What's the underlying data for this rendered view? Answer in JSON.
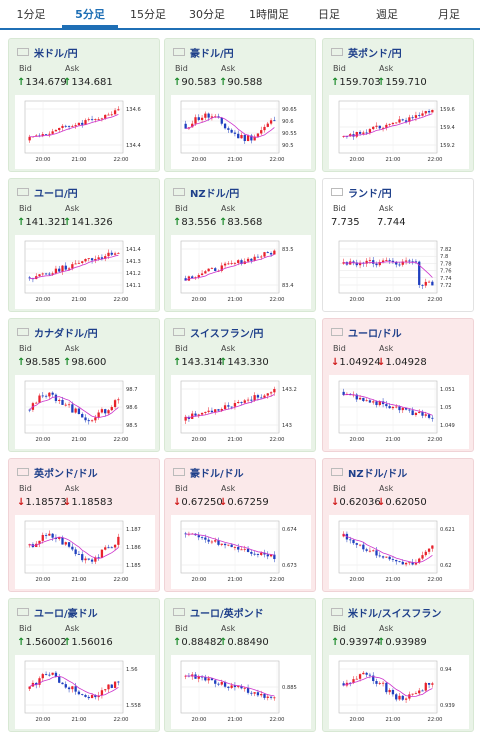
{
  "tabs": [
    {
      "label": "1分足",
      "active": false
    },
    {
      "label": "5分足",
      "active": true
    },
    {
      "label": "15分足",
      "active": false
    },
    {
      "label": "30分足",
      "active": false
    },
    {
      "label": "1時間足",
      "active": false
    },
    {
      "label": "日足",
      "active": false
    },
    {
      "label": "週足",
      "active": false
    },
    {
      "label": "月足",
      "active": false
    }
  ],
  "labels": {
    "bid": "Bid",
    "ask": "Ask"
  },
  "colors": {
    "up_arrow": "#1a8a2a",
    "down_arrow": "#d01a1a",
    "candle_up": "#e8222c",
    "candle_down": "#1f3fbf",
    "moving_average": "#cc33cc",
    "tab_accent": "#1f6fb5"
  },
  "cards": [
    {
      "pair": "米ドル/円",
      "flag": "us",
      "state": "up",
      "bid": "134.679",
      "ask": "134.681",
      "bid_dir": "up",
      "ask_dir": "up",
      "chart_data": {
        "type": "candlestick",
        "x_ticks": [
          "20:00",
          "21:00",
          "22:00"
        ],
        "y_ticks": [
          "134.6",
          "134.4"
        ],
        "trend": "rising"
      }
    },
    {
      "pair": "豪ドル/円",
      "flag": "au",
      "state": "up",
      "bid": "90.583",
      "ask": "90.588",
      "bid_dir": "up",
      "ask_dir": "up",
      "chart_data": {
        "type": "candlestick",
        "x_ticks": [
          "20:00",
          "21:00",
          "22:00"
        ],
        "y_ticks": [
          "90.65",
          "90.6",
          "90.55",
          "90.5"
        ],
        "trend": "mixed"
      }
    },
    {
      "pair": "英ポンド/円",
      "flag": "gb",
      "state": "up",
      "bid": "159.703",
      "ask": "159.710",
      "bid_dir": "up",
      "ask_dir": "up",
      "chart_data": {
        "type": "candlestick",
        "x_ticks": [
          "20:00",
          "21:00",
          "22:00"
        ],
        "y_ticks": [
          "159.6",
          "159.4",
          "159.2"
        ],
        "trend": "rising"
      }
    },
    {
      "pair": "ユーロ/円",
      "flag": "eu",
      "state": "up",
      "bid": "141.321",
      "ask": "141.326",
      "bid_dir": "up",
      "ask_dir": "up",
      "chart_data": {
        "type": "candlestick",
        "x_ticks": [
          "20:00",
          "21:00",
          "22:00"
        ],
        "y_ticks": [
          "141.4",
          "141.3",
          "141.2",
          "141.1"
        ],
        "trend": "rising"
      }
    },
    {
      "pair": "NZドル/円",
      "flag": "nz",
      "state": "up",
      "bid": "83.556",
      "ask": "83.568",
      "bid_dir": "up",
      "ask_dir": "up",
      "chart_data": {
        "type": "candlestick",
        "x_ticks": [
          "20:00",
          "21:00",
          "22:00"
        ],
        "y_ticks": [
          "83.5",
          "83.4"
        ],
        "trend": "rising"
      }
    },
    {
      "pair": "ランド/円",
      "flag": "za",
      "state": "flat",
      "bid": "7.735",
      "ask": "7.744",
      "bid_dir": "none",
      "ask_dir": "none",
      "chart_data": {
        "type": "candlestick",
        "x_ticks": [
          "20:00",
          "21:00",
          "22:00"
        ],
        "y_ticks": [
          "7.82",
          "7.8",
          "7.78",
          "7.76",
          "7.74",
          "7.72"
        ],
        "trend": "drop"
      }
    },
    {
      "pair": "カナダドル/円",
      "flag": "ca",
      "state": "up",
      "bid": "98.585",
      "ask": "98.600",
      "bid_dir": "up",
      "ask_dir": "up",
      "chart_data": {
        "type": "candlestick",
        "x_ticks": [
          "20:00",
          "21:00",
          "22:00"
        ],
        "y_ticks": [
          "98.7",
          "98.6",
          "98.5"
        ],
        "trend": "mixed"
      }
    },
    {
      "pair": "スイスフラン/円",
      "flag": "ch",
      "state": "up",
      "bid": "143.314",
      "ask": "143.330",
      "bid_dir": "up",
      "ask_dir": "up",
      "chart_data": {
        "type": "candlestick",
        "x_ticks": [
          "20:00",
          "21:00",
          "22:00"
        ],
        "y_ticks": [
          "143.2",
          "143"
        ],
        "trend": "rising"
      }
    },
    {
      "pair": "ユーロ/ドル",
      "flag": "eu",
      "state": "down",
      "bid": "1.04924",
      "ask": "1.04928",
      "bid_dir": "down",
      "ask_dir": "down",
      "chart_data": {
        "type": "candlestick",
        "x_ticks": [
          "20:00",
          "21:00",
          "22:00"
        ],
        "y_ticks": [
          "1.051",
          "1.05",
          "1.049"
        ],
        "trend": "falling"
      }
    },
    {
      "pair": "英ポンド/ドル",
      "flag": "gb",
      "state": "down",
      "bid": "1.18573",
      "ask": "1.18583",
      "bid_dir": "down",
      "ask_dir": "down",
      "chart_data": {
        "type": "candlestick",
        "x_ticks": [
          "20:00",
          "21:00",
          "22:00"
        ],
        "y_ticks": [
          "1.187",
          "1.186",
          "1.185"
        ],
        "trend": "mixed"
      }
    },
    {
      "pair": "豪ドル/ドル",
      "flag": "au",
      "state": "down",
      "bid": "0.67250",
      "ask": "0.67259",
      "bid_dir": "down",
      "ask_dir": "down",
      "chart_data": {
        "type": "candlestick",
        "x_ticks": [
          "20:00",
          "21:00",
          "22:00"
        ],
        "y_ticks": [
          "0.674",
          "0.673"
        ],
        "trend": "falling"
      }
    },
    {
      "pair": "NZドル/ドル",
      "flag": "nz",
      "state": "down",
      "bid": "0.62036",
      "ask": "0.62050",
      "bid_dir": "down",
      "ask_dir": "down",
      "chart_data": {
        "type": "candlestick",
        "x_ticks": [
          "20:00",
          "21:00",
          "22:00"
        ],
        "y_ticks": [
          "0.621",
          "0.62"
        ],
        "trend": "dip"
      }
    },
    {
      "pair": "ユーロ/豪ドル",
      "flag": "eu",
      "state": "up",
      "bid": "1.56002",
      "ask": "1.56016",
      "bid_dir": "up",
      "ask_dir": "up",
      "chart_data": {
        "type": "candlestick",
        "x_ticks": [
          "20:00",
          "21:00",
          "22:00"
        ],
        "y_ticks": [
          "1.56",
          "1.558"
        ],
        "trend": "mixed"
      }
    },
    {
      "pair": "ユーロ/英ポンド",
      "flag": "eu",
      "state": "up",
      "bid": "0.88482",
      "ask": "0.88490",
      "bid_dir": "up",
      "ask_dir": "up",
      "chart_data": {
        "type": "candlestick",
        "x_ticks": [
          "20:00",
          "21:00",
          "22:00"
        ],
        "y_ticks": [
          "0.885"
        ],
        "trend": "falling"
      }
    },
    {
      "pair": "米ドル/スイスフラン",
      "flag": "us",
      "state": "up",
      "bid": "0.93974",
      "ask": "0.93989",
      "bid_dir": "up",
      "ask_dir": "up",
      "chart_data": {
        "type": "candlestick",
        "x_ticks": [
          "20:00",
          "21:00",
          "22:00"
        ],
        "y_ticks": [
          "0.94",
          "0.939"
        ],
        "trend": "mixed"
      }
    }
  ]
}
